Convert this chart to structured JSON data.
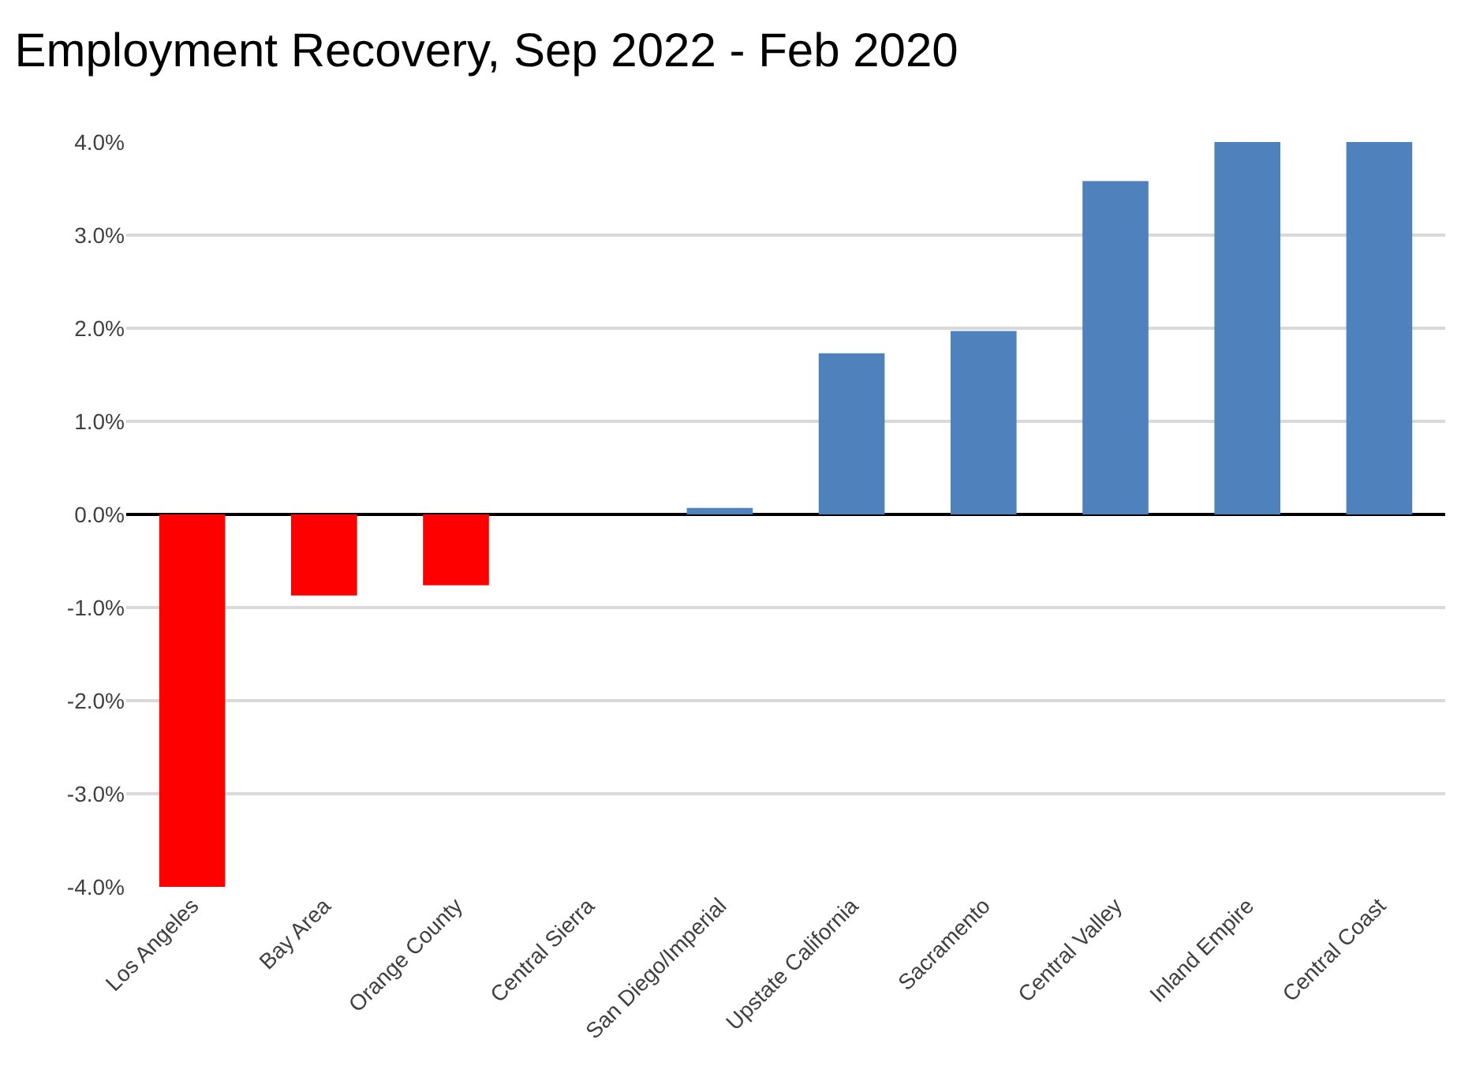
{
  "chart_data": {
    "type": "bar",
    "title": "Employment Recovery, Sep 2022 - Feb 2020",
    "categories": [
      "Los Angeles",
      "Bay Area",
      "Orange County",
      "Central Sierra",
      "San Diego/Imperial",
      "Upstate California",
      "Sacramento",
      "Central Valley",
      "Inland Empire",
      "Central Coast"
    ],
    "values": [
      -4.0,
      -0.87,
      -0.76,
      0.0,
      0.07,
      1.73,
      1.97,
      3.58,
      4.0,
      4.0
    ],
    "colors": [
      "#ff0000",
      "#ff0000",
      "#ff0000",
      "#4f81bd",
      "#4f81bd",
      "#4f81bd",
      "#4f81bd",
      "#4f81bd",
      "#4f81bd",
      "#4f81bd"
    ],
    "ylim": [
      -4.0,
      4.0
    ],
    "yticks": [
      {
        "value": -4.0,
        "label": "-4.0%"
      },
      {
        "value": -3.0,
        "label": "-3.0%"
      },
      {
        "value": -2.0,
        "label": "-2.0%"
      },
      {
        "value": -1.0,
        "label": "-1.0%"
      },
      {
        "value": 0.0,
        "label": "0.0%"
      },
      {
        "value": 1.0,
        "label": "1.0%"
      },
      {
        "value": 2.0,
        "label": "2.0%"
      },
      {
        "value": 3.0,
        "label": "3.0%"
      },
      {
        "value": 4.0,
        "label": "4.0%"
      }
    ],
    "grid": "y"
  }
}
